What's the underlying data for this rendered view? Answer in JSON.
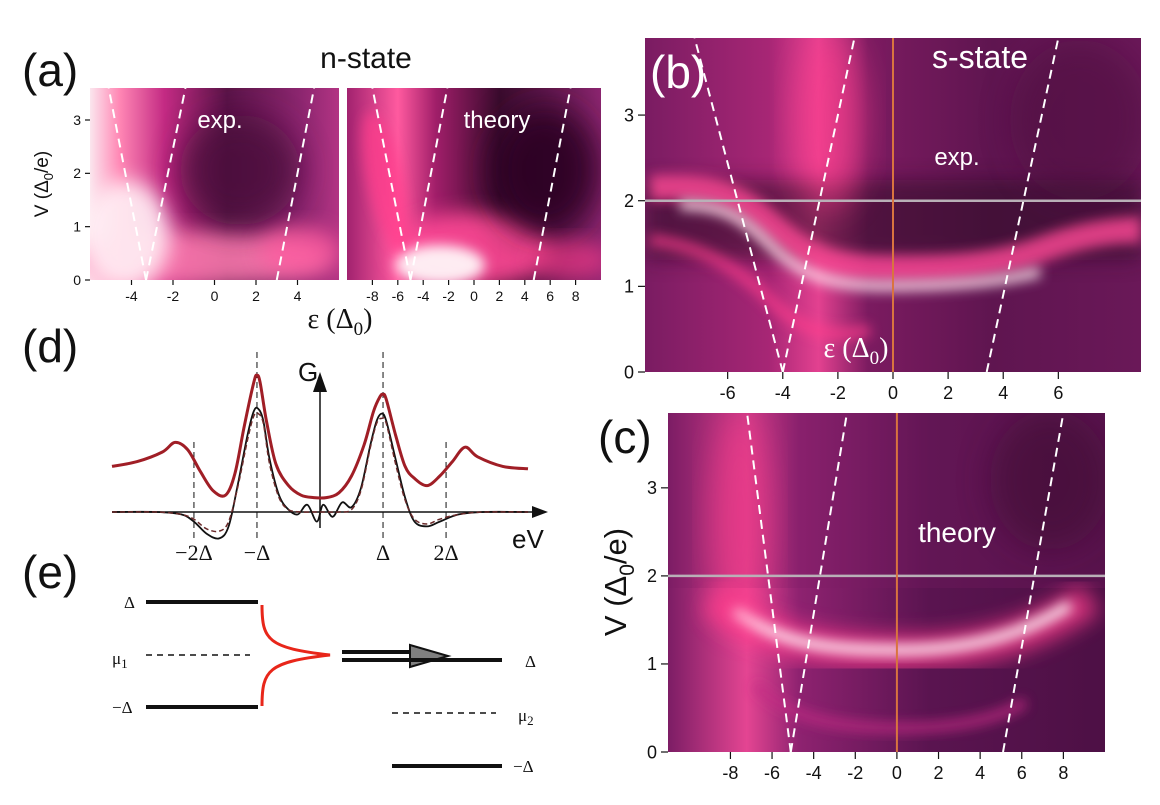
{
  "figure": {
    "panel_a_label": "(a)",
    "panel_b_label": "(b)",
    "panel_c_label": "(c)",
    "panel_d_label": "(d)",
    "panel_e_label": "(e)"
  },
  "colors": {
    "map_dark": "#3a0a2c",
    "map_mid": "#8a1d6d",
    "map_bright": "#ff3d8c",
    "map_white": "#fff5f8",
    "dashed_line": "#ffffff",
    "zero_line": "#d9743f",
    "grey_line": "#b9b0b7",
    "red_curve": "#a01e26",
    "black_curve": "#111111",
    "tunnel_red": "#e8261a",
    "arrow_grey": "#808080"
  },
  "chart_data": [
    {
      "id": "a",
      "type": "heatmap",
      "title": "n-state",
      "ylabel": "V (Δ0/e)",
      "ylabel_parts": {
        "v": "V (Δ",
        "sub": "0",
        "tail": "/e)"
      },
      "xlabel": "ε (Δ0)",
      "xlabel_parts": {
        "eps": "ε (Δ",
        "sub": "0",
        "tail": ")"
      },
      "ylim": [
        0,
        3.6
      ],
      "y_ticks": [
        "0",
        "1",
        "2",
        "3"
      ],
      "subplots": [
        {
          "label": "exp.",
          "xlim": [
            -6,
            6
          ],
          "x_ticks": [
            "-4",
            "-2",
            "0",
            "2",
            "4"
          ],
          "dashed_lines": [
            {
              "x0": -3.3,
              "x1": -5.1,
              "v0": 0,
              "v1": 3.6
            },
            {
              "x0": -3.3,
              "x1": -1.4,
              "v0": 0,
              "v1": 3.6
            },
            {
              "x0": 3.0,
              "x1": 4.8,
              "v0": 0,
              "v1": 3.6
            }
          ]
        },
        {
          "label": "theory",
          "xlim": [
            -10,
            10
          ],
          "x_ticks": [
            "-8",
            "-6",
            "-4",
            "-2",
            "0",
            "2",
            "4",
            "6",
            "8"
          ],
          "dashed_lines": [
            {
              "x0": -5.0,
              "x1": -8.0,
              "v0": 0,
              "v1": 3.6
            },
            {
              "x0": -5.0,
              "x1": -2.1,
              "v0": 0,
              "v1": 3.6
            },
            {
              "x0": 4.7,
              "x1": 7.6,
              "v0": 0,
              "v1": 3.6
            }
          ]
        }
      ]
    },
    {
      "id": "b",
      "type": "heatmap",
      "title": "s-state",
      "label": "exp.",
      "xlabel": "ε (Δ0)",
      "xlabel_parts": {
        "eps": "ε (Δ",
        "sub": "0",
        "tail": ")"
      },
      "xlim": [
        -9,
        9
      ],
      "ylim": [
        0,
        3.9
      ],
      "x_ticks": [
        "-6",
        "-4",
        "-2",
        "0",
        "2",
        "4",
        "6"
      ],
      "y_ticks": [
        "0",
        "1",
        "2",
        "3"
      ],
      "horizontal_line_v": 2.0,
      "vertical_line_eps": 0,
      "dashed_lines": [
        {
          "x0": -4.0,
          "x1": -7.2,
          "v0": 0,
          "v1": 3.9
        },
        {
          "x0": -4.0,
          "x1": -1.4,
          "v0": 0,
          "v1": 3.9
        },
        {
          "x0": 3.4,
          "x1": 6.0,
          "v0": 0,
          "v1": 3.9
        }
      ]
    },
    {
      "id": "c",
      "type": "heatmap",
      "label": "theory",
      "ylabel": "V (Δ0/e)",
      "ylabel_parts": {
        "v": "V (Δ",
        "sub": "0",
        "tail": "/e)"
      },
      "xlim": [
        -11,
        10
      ],
      "ylim": [
        0,
        3.85
      ],
      "x_ticks": [
        "-8",
        "-6",
        "-4",
        "-2",
        "0",
        "2",
        "4",
        "6",
        "8"
      ],
      "y_ticks": [
        "0",
        "1",
        "2",
        "3"
      ],
      "horizontal_line_v": 2.0,
      "vertical_line_eps": 0,
      "dashed_lines": [
        {
          "x0": -5.1,
          "x1": -7.2,
          "v0": 0,
          "v1": 3.85
        },
        {
          "x0": -5.1,
          "x1": -2.4,
          "v0": 0,
          "v1": 3.85
        },
        {
          "x0": 5.1,
          "x1": 8.0,
          "v0": 0,
          "v1": 3.85
        }
      ]
    },
    {
      "id": "d",
      "type": "line",
      "ylabel": "G",
      "xlabel": "eV",
      "x_tick_labels": [
        "−2Δ",
        "−Δ",
        "Δ",
        "2Δ"
      ],
      "x_tick_values": [
        -2,
        -1,
        1,
        2
      ],
      "xlim": [
        -3.3,
        3.3
      ],
      "ylim": [
        -0.5,
        3.0
      ],
      "series": [
        {
          "name": "red",
          "x": [
            -3.3,
            -2.9,
            -2.5,
            -2.3,
            -2.1,
            -1.9,
            -1.7,
            -1.5,
            -1.35,
            -1.2,
            -1.05,
            -1.0,
            -0.95,
            -0.85,
            -0.7,
            -0.5,
            -0.3,
            -0.1,
            0.1,
            0.3,
            0.5,
            0.7,
            0.85,
            0.95,
            1.0,
            1.05,
            1.2,
            1.35,
            1.5,
            1.7,
            1.9,
            2.1,
            2.3,
            2.5,
            2.9,
            3.3
          ],
          "y": [
            0.95,
            1.05,
            1.25,
            1.45,
            1.3,
            0.85,
            0.45,
            0.35,
            0.8,
            1.8,
            2.7,
            2.85,
            2.7,
            1.9,
            1.0,
            0.55,
            0.35,
            0.3,
            0.3,
            0.4,
            0.75,
            1.4,
            2.1,
            2.4,
            2.45,
            2.35,
            1.6,
            0.95,
            0.7,
            0.55,
            0.75,
            1.05,
            1.35,
            1.15,
            0.95,
            0.9
          ]
        },
        {
          "name": "black",
          "x": [
            -3.3,
            -2.6,
            -2.2,
            -2.0,
            -1.8,
            -1.6,
            -1.45,
            -1.3,
            -1.15,
            -1.05,
            -0.98,
            -0.9,
            -0.8,
            -0.65,
            -0.5,
            -0.35,
            -0.2,
            -0.05,
            0.05,
            0.2,
            0.35,
            0.5,
            0.65,
            0.8,
            0.9,
            0.98,
            1.05,
            1.2,
            1.35,
            1.5,
            1.7,
            1.9,
            2.2,
            2.6,
            3.3
          ],
          "y": [
            0.0,
            0.0,
            -0.05,
            -0.2,
            -0.45,
            -0.55,
            -0.3,
            0.6,
            1.6,
            2.1,
            2.15,
            1.9,
            1.1,
            0.35,
            0.05,
            -0.05,
            0.15,
            -0.2,
            0.15,
            -0.1,
            0.2,
            0.1,
            0.5,
            1.4,
            1.9,
            2.05,
            1.9,
            1.1,
            0.3,
            -0.2,
            -0.3,
            -0.2,
            -0.05,
            0.0,
            0.0
          ]
        },
        {
          "name": "dashed",
          "x": [
            -3.3,
            -2.6,
            -2.2,
            -2.0,
            -1.8,
            -1.6,
            -1.45,
            -1.3,
            -1.15,
            -1.05,
            -0.98,
            -0.9,
            -0.8,
            -0.65,
            -0.5,
            -0.3,
            -0.1,
            0.1,
            0.3,
            0.5,
            0.65,
            0.8,
            0.9,
            0.98,
            1.05,
            1.2,
            1.35,
            1.5,
            1.7,
            1.9,
            2.2,
            2.6,
            3.3
          ],
          "y": [
            0.0,
            0.0,
            -0.05,
            -0.15,
            -0.35,
            -0.4,
            -0.2,
            0.55,
            1.5,
            2.0,
            2.05,
            1.85,
            1.0,
            0.3,
            0.05,
            0.0,
            0.0,
            0.0,
            0.0,
            0.05,
            0.45,
            1.35,
            1.85,
            1.95,
            1.85,
            1.0,
            0.25,
            -0.15,
            -0.25,
            -0.15,
            -0.05,
            0.0,
            0.0
          ]
        }
      ]
    },
    {
      "id": "e",
      "type": "diagram",
      "left_levels": [
        "Δ",
        "μ1",
        "−Δ"
      ],
      "left_level_parts": {
        "delta": "Δ",
        "mu": "μ",
        "mu_sub": "1",
        "minus_delta": "−Δ"
      },
      "right_levels": [
        "Δ",
        "μ2",
        "−Δ"
      ],
      "right_level_parts": {
        "delta": "Δ",
        "mu": "μ",
        "mu_sub": "2",
        "minus_delta": "−Δ"
      }
    }
  ]
}
